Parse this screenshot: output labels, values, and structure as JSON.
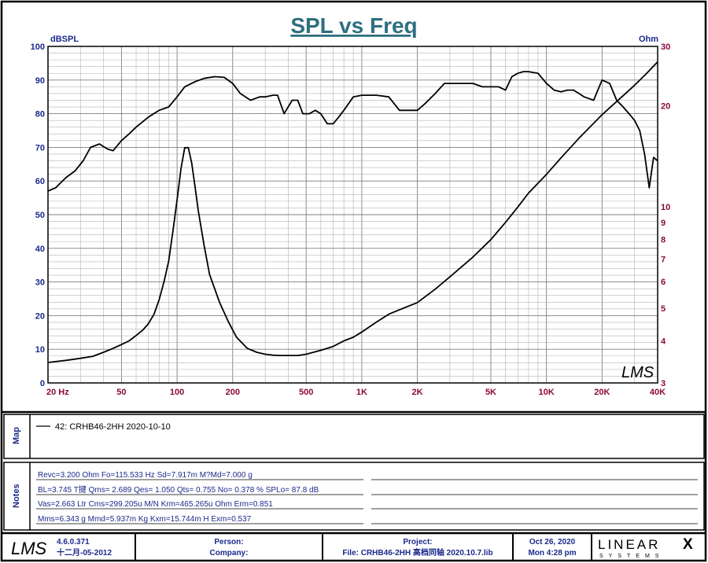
{
  "chart_data": {
    "type": "line",
    "title": "SPL vs Freq",
    "y_left_unit": "dBSPL",
    "y_right_unit": "Ohm",
    "ylim_left": [
      0,
      100
    ],
    "ylim_right": [
      3,
      30
    ],
    "y_right_scale": "log",
    "xlim": [
      20,
      40000
    ],
    "x_scale": "log",
    "grid": true,
    "x_tick_labels": [
      {
        "value": 20,
        "label": "20  Hz"
      },
      {
        "value": 50,
        "label": "50"
      },
      {
        "value": 100,
        "label": "100"
      },
      {
        "value": 200,
        "label": "200"
      },
      {
        "value": 500,
        "label": "500"
      },
      {
        "value": 1000,
        "label": "1K"
      },
      {
        "value": 2000,
        "label": "2K"
      },
      {
        "value": 5000,
        "label": "5K"
      },
      {
        "value": 10000,
        "label": "10K"
      },
      {
        "value": 20000,
        "label": "20K"
      },
      {
        "value": 40000,
        "label": "40K"
      }
    ],
    "y_left_ticks": [
      0,
      10,
      20,
      30,
      40,
      50,
      60,
      70,
      80,
      90,
      100
    ],
    "y_right_ticks": [
      3,
      4,
      5,
      6,
      7,
      8,
      9,
      10,
      20,
      30
    ],
    "series": [
      {
        "name": "SPL",
        "axis": "left",
        "x": [
          20,
          22,
          25,
          28,
          31,
          34,
          38,
          42,
          45,
          50,
          55,
          60,
          70,
          80,
          90,
          100,
          110,
          125,
          140,
          160,
          180,
          200,
          220,
          250,
          280,
          300,
          330,
          350,
          380,
          420,
          450,
          480,
          520,
          560,
          600,
          650,
          700,
          750,
          800,
          900,
          1000,
          1100,
          1200,
          1400,
          1600,
          1800,
          2000,
          2200,
          2500,
          2800,
          3200,
          3600,
          4000,
          4500,
          5000,
          5500,
          6000,
          6500,
          7000,
          7500,
          8000,
          9000,
          10000,
          11000,
          12000,
          13000,
          14000,
          15000,
          16000,
          18000,
          20000,
          22000,
          24000,
          26000,
          28000,
          30000,
          32000,
          34000,
          36000,
          38000,
          40000
        ],
        "values": [
          57,
          58,
          61,
          63,
          66,
          70,
          71,
          69.5,
          69,
          72,
          74,
          76,
          79,
          81,
          82,
          85,
          88,
          89.5,
          90.5,
          91,
          90.8,
          89,
          86,
          84,
          85,
          85,
          85.5,
          85.5,
          80,
          84,
          84,
          80,
          80,
          81,
          80,
          77,
          77,
          79,
          81,
          85,
          85.5,
          85.5,
          85.5,
          85,
          81,
          81,
          81,
          83,
          86,
          89,
          89,
          89,
          89,
          88,
          88,
          88,
          87,
          91,
          92,
          92.5,
          92.5,
          92,
          89,
          87,
          86.5,
          87,
          87,
          86,
          85,
          84,
          90,
          89,
          84,
          82,
          80,
          78,
          75,
          68,
          58,
          67,
          66
        ]
      },
      {
        "name": "Impedance",
        "axis": "right",
        "x": [
          20,
          25,
          30,
          35,
          40,
          45,
          50,
          55,
          60,
          65,
          70,
          75,
          80,
          85,
          90,
          95,
          100,
          105,
          110,
          115,
          120,
          125,
          130,
          140,
          150,
          170,
          190,
          210,
          240,
          270,
          300,
          330,
          360,
          400,
          450,
          500,
          600,
          700,
          800,
          900,
          1000,
          1200,
          1400,
          1600,
          2000,
          2500,
          3000,
          4000,
          5000,
          6000,
          7000,
          8000,
          10000,
          12000,
          15000,
          20000,
          25000,
          30000,
          35000,
          40000
        ],
        "values": [
          3.45,
          3.5,
          3.55,
          3.6,
          3.7,
          3.8,
          3.9,
          4.0,
          4.15,
          4.3,
          4.5,
          4.8,
          5.3,
          6.0,
          6.9,
          8.5,
          10.5,
          13.0,
          15.0,
          15.0,
          13.5,
          11.5,
          9.8,
          7.7,
          6.3,
          5.2,
          4.55,
          4.1,
          3.8,
          3.7,
          3.65,
          3.63,
          3.62,
          3.62,
          3.62,
          3.65,
          3.75,
          3.85,
          4.0,
          4.1,
          4.25,
          4.55,
          4.8,
          4.95,
          5.2,
          5.7,
          6.2,
          7.1,
          8.0,
          9.0,
          10.0,
          11.0,
          12.5,
          14.0,
          16.0,
          18.8,
          21.0,
          23.0,
          25.0,
          27.0
        ]
      }
    ]
  },
  "map_section": {
    "label": "Map",
    "legend": [
      {
        "text": "42: CRHB46-2HH 2020-10-10"
      }
    ]
  },
  "notes_section": {
    "label": "Notes",
    "lines": [
      "Revc=3.200 Ohm  Fo=115.533 Hz  Sd=7.917m  M?Md=7.000 g",
      "BL=3.745 T揵  Qms= 2.689  Qes= 1.050  Qts= 0.755  No= 0.378 %  SPLo= 87.8 dB",
      "Vas=2.663 Ltr  Cms=299.205u M/N  Krm=465.265u Ohm  Erm=0.851",
      "Mms=6.343 g  Mmd=5.937m Kg  Kxm=15.744m H  Exm=0.537"
    ]
  },
  "footer": {
    "logo": "LMS",
    "version": "4.6.0.371",
    "build_date": "十二月-05-2012",
    "person_label": "Person:",
    "company_label": "Company:",
    "project_label": "Project:",
    "file_text": "File: CRHB46-2HH 高档同轴 2020.10.7.lib",
    "date": "Oct 26, 2020",
    "time": "Mon  4:28 pm",
    "brand_main": "LINEAR",
    "brand_x": "X",
    "brand_sub": "SYSTEMS"
  },
  "watermark": "LMS",
  "colors": {
    "title": "#2e6f80",
    "axis_label": "#1b2a8a",
    "x_tick": "#8b0a3a",
    "right_tick": "#8b0a3a",
    "grid": "#9a9a9a",
    "line": "#000000"
  }
}
